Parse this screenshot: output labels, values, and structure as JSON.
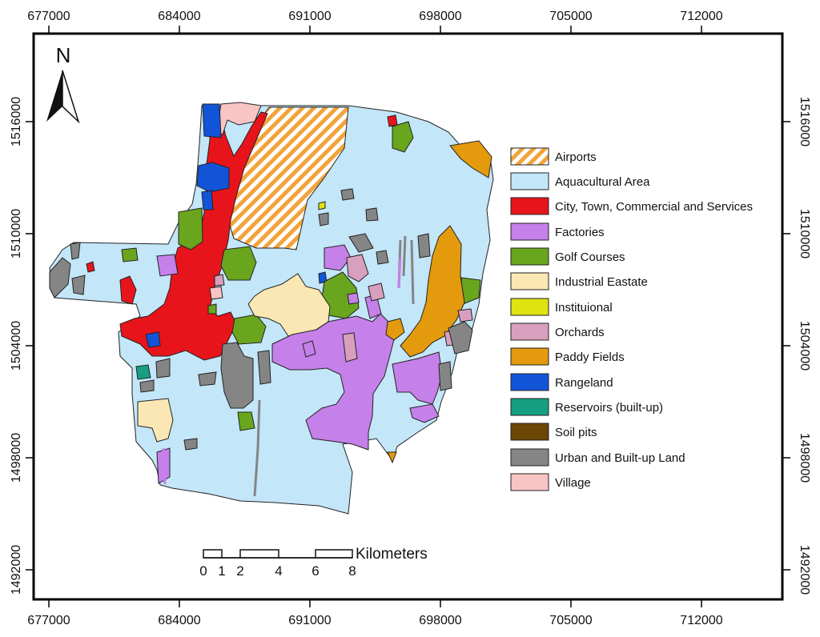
{
  "grid": {
    "x_ticks": [
      "677000",
      "684000",
      "691000",
      "698000",
      "705000",
      "712000"
    ],
    "y_ticks": [
      "1516000",
      "1510000",
      "1504000",
      "1498000",
      "1492000"
    ]
  },
  "north_arrow": {
    "label": "N"
  },
  "scale_bar": {
    "unit": "Kilometers",
    "labels": [
      "0",
      "1",
      "2",
      "4",
      "6",
      "8"
    ]
  },
  "legend": [
    {
      "label": "Airports",
      "color": "#f2a33a",
      "pattern": "hatch"
    },
    {
      "label": "Aquacultural Area",
      "color": "#c3e6f8"
    },
    {
      "label": "City, Town, Commercial and Services",
      "color": "#e8141b"
    },
    {
      "label": "Factories",
      "color": "#c680ea"
    },
    {
      "label": "Golf Courses",
      "color": "#6aa51e"
    },
    {
      "label": "Industrial Eastate",
      "color": "#fbe7b3"
    },
    {
      "label": "Instituional",
      "color": "#dfe310"
    },
    {
      "label": "Orchards",
      "color": "#d8a0be"
    },
    {
      "label": "Paddy Fields",
      "color": "#e39a0c"
    },
    {
      "label": "Rangeland",
      "color": "#1254d8"
    },
    {
      "label": "Reservoirs (built-up)",
      "color": "#159f80"
    },
    {
      "label": "Soil pits",
      "color": "#6b4605"
    },
    {
      "label": "Urban and Built-up Land",
      "color": "#858585"
    },
    {
      "label": "Village",
      "color": "#f9c4c4"
    }
  ]
}
